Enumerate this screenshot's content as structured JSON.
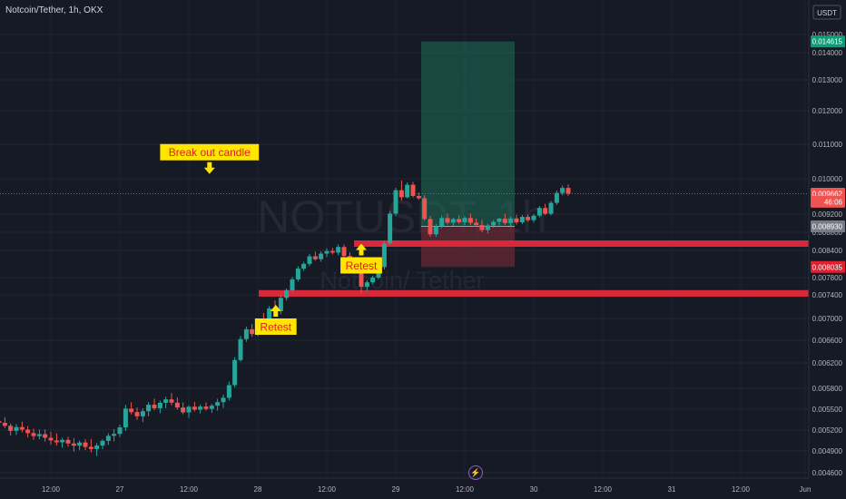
{
  "header": {
    "title": "Notcoin/Tether, 1h, OKX",
    "currency": "USDT"
  },
  "watermark": {
    "symbol": "NOTUSDT, 1h",
    "name": "Notcoin/ Tether"
  },
  "icons": {
    "bottom": "lightning-icon"
  },
  "colors": {
    "background": "#161a25",
    "up": "#26a69a",
    "down": "#ef5350",
    "zone": "#d8283a",
    "target_box": "#1f6f5a",
    "stop_box": "#6b2a34",
    "label_bg": "#ffe500",
    "label_text": "#e0201b",
    "arrow": "#ffe500"
  },
  "chart_data": {
    "type": "candlestick",
    "pair": "Notcoin/Tether",
    "interval": "1h",
    "exchange": "OKX",
    "y_ticks": [
      0.015,
      0.014,
      0.013,
      0.012,
      0.011,
      0.01,
      0.0092,
      0.0088,
      0.0084,
      0.0078,
      0.0074,
      0.007,
      0.0066,
      0.0062,
      0.0058,
      0.0055,
      0.0052,
      0.0049,
      0.0046
    ],
    "y_tick_labels": [
      "0.015000",
      "0.014000",
      "0.013000",
      "0.012000",
      "0.011000",
      "0.010000",
      "0.009200",
      "0.008800",
      "0.008400",
      "0.007800",
      "0.007400",
      "0.007000",
      "0.006600",
      "0.006200",
      "0.005800",
      "0.005500",
      "0.005200",
      "0.004900",
      "0.004600"
    ],
    "x_labels": [
      "12:00",
      "27",
      "12:00",
      "28",
      "12:00",
      "29",
      "12:00",
      "30",
      "12:00",
      "31",
      "12:00",
      "Jun"
    ],
    "price_tags": [
      {
        "label": "0.014615",
        "value": 0.014615,
        "bg": "#0f9d77",
        "fg": "#ffffff"
      },
      {
        "label": "0.009662",
        "value": 0.009662,
        "bg": "#ef5350",
        "fg": "#ffffff"
      },
      {
        "label": "46:06",
        "value": 0.00948,
        "bg": "#ef5350",
        "fg": "#ffffff"
      },
      {
        "label": "0.008930",
        "value": 0.00893,
        "bg": "#787b86",
        "fg": "#ffffff"
      },
      {
        "label": "0.008035",
        "value": 0.008035,
        "bg": "#e0202f",
        "fg": "#ffffff"
      }
    ],
    "current_price": 0.009662,
    "support_zones": [
      {
        "low": 0.00848,
        "high": 0.00862
      },
      {
        "low": 0.00737,
        "high": 0.00751
      }
    ],
    "position": {
      "entry": 0.00893,
      "target": 0.014615,
      "stop": 0.008035
    },
    "annotations": [
      {
        "text": "Break out candle",
        "time": 27.65,
        "price": 0.01077,
        "arrow": "down"
      },
      {
        "text": "Retest",
        "time": 28.75,
        "price": 0.00807,
        "arrow": "up"
      },
      {
        "text": "Retest",
        "time": 28.13,
        "price": 0.00685,
        "arrow": "up"
      }
    ],
    "candles": [
      {
        "t": 26.0,
        "o": 0.005403,
        "h": 0.005456,
        "l": 0.005316,
        "c": 0.005378
      },
      {
        "t": 26.042,
        "o": 0.005378,
        "h": 0.005425,
        "l": 0.005331,
        "c": 0.005363
      },
      {
        "t": 26.083,
        "o": 0.005363,
        "h": 0.005397,
        "l": 0.005277,
        "c": 0.005327
      },
      {
        "t": 26.125,
        "o": 0.005327,
        "h": 0.005393,
        "l": 0.005264,
        "c": 0.005304
      },
      {
        "t": 26.167,
        "o": 0.005304,
        "h": 0.005385,
        "l": 0.005229,
        "c": 0.005261
      },
      {
        "t": 26.208,
        "o": 0.005261,
        "h": 0.005295,
        "l": 0.005123,
        "c": 0.005189
      },
      {
        "t": 26.25,
        "o": 0.005189,
        "h": 0.005286,
        "l": 0.005128,
        "c": 0.005243
      },
      {
        "t": 26.292,
        "o": 0.005243,
        "h": 0.005321,
        "l": 0.005168,
        "c": 0.005206
      },
      {
        "t": 26.333,
        "o": 0.005206,
        "h": 0.005256,
        "l": 0.005093,
        "c": 0.005156
      },
      {
        "t": 26.375,
        "o": 0.005156,
        "h": 0.00522,
        "l": 0.005059,
        "c": 0.005113
      },
      {
        "t": 26.417,
        "o": 0.005113,
        "h": 0.005207,
        "l": 0.005065,
        "c": 0.005141
      },
      {
        "t": 26.458,
        "o": 0.005141,
        "h": 0.005209,
        "l": 0.005032,
        "c": 0.005089
      },
      {
        "t": 26.5,
        "o": 0.005089,
        "h": 0.005174,
        "l": 0.00499,
        "c": 0.005051
      },
      {
        "t": 26.542,
        "o": 0.005051,
        "h": 0.005152,
        "l": 0.004978,
        "c": 0.005024
      },
      {
        "t": 26.583,
        "o": 0.005024,
        "h": 0.005089,
        "l": 0.004946,
        "c": 0.005059
      },
      {
        "t": 26.625,
        "o": 0.005059,
        "h": 0.005104,
        "l": 0.004961,
        "c": 0.005007
      },
      {
        "t": 26.667,
        "o": 0.005007,
        "h": 0.005084,
        "l": 0.004891,
        "c": 0.004975
      },
      {
        "t": 26.708,
        "o": 0.004975,
        "h": 0.00505,
        "l": 0.004909,
        "c": 0.005021
      },
      {
        "t": 26.75,
        "o": 0.005021,
        "h": 0.005071,
        "l": 0.004912,
        "c": 0.004958
      },
      {
        "t": 26.792,
        "o": 0.004958,
        "h": 0.005071,
        "l": 0.004881,
        "c": 0.004927
      },
      {
        "t": 26.833,
        "o": 0.004927,
        "h": 0.005012,
        "l": 0.004829,
        "c": 0.004977
      },
      {
        "t": 26.875,
        "o": 0.004977,
        "h": 0.005067,
        "l": 0.004926,
        "c": 0.005045
      },
      {
        "t": 26.917,
        "o": 0.005045,
        "h": 0.005153,
        "l": 0.004987,
        "c": 0.005117
      },
      {
        "t": 26.958,
        "o": 0.005117,
        "h": 0.005213,
        "l": 0.005036,
        "c": 0.005145
      },
      {
        "t": 27.0,
        "o": 0.005145,
        "h": 0.005278,
        "l": 0.005101,
        "c": 0.005238
      },
      {
        "t": 27.042,
        "o": 0.005238,
        "h": 0.005562,
        "l": 0.005188,
        "c": 0.005508
      },
      {
        "t": 27.083,
        "o": 0.005508,
        "h": 0.005599,
        "l": 0.005425,
        "c": 0.005458
      },
      {
        "t": 27.125,
        "o": 0.005458,
        "h": 0.005524,
        "l": 0.005347,
        "c": 0.005398
      },
      {
        "t": 27.167,
        "o": 0.005398,
        "h": 0.005512,
        "l": 0.005314,
        "c": 0.005471
      },
      {
        "t": 27.208,
        "o": 0.005471,
        "h": 0.005603,
        "l": 0.005397,
        "c": 0.005564
      },
      {
        "t": 27.25,
        "o": 0.005564,
        "h": 0.005652,
        "l": 0.005484,
        "c": 0.005513
      },
      {
        "t": 27.292,
        "o": 0.005513,
        "h": 0.005624,
        "l": 0.005442,
        "c": 0.005592
      },
      {
        "t": 27.333,
        "o": 0.005592,
        "h": 0.005679,
        "l": 0.005513,
        "c": 0.005641
      },
      {
        "t": 27.375,
        "o": 0.005641,
        "h": 0.005733,
        "l": 0.005556,
        "c": 0.005594
      },
      {
        "t": 27.417,
        "o": 0.005594,
        "h": 0.005669,
        "l": 0.005492,
        "c": 0.005524
      },
      {
        "t": 27.458,
        "o": 0.005524,
        "h": 0.005595,
        "l": 0.005427,
        "c": 0.005454
      },
      {
        "t": 27.5,
        "o": 0.005454,
        "h": 0.005557,
        "l": 0.005374,
        "c": 0.005535
      },
      {
        "t": 27.542,
        "o": 0.005535,
        "h": 0.005605,
        "l": 0.005467,
        "c": 0.005493
      },
      {
        "t": 27.583,
        "o": 0.005493,
        "h": 0.005568,
        "l": 0.005438,
        "c": 0.005537
      },
      {
        "t": 27.625,
        "o": 0.005537,
        "h": 0.005598,
        "l": 0.005478,
        "c": 0.005504
      },
      {
        "t": 27.667,
        "o": 0.005504,
        "h": 0.005576,
        "l": 0.005447,
        "c": 0.00555
      },
      {
        "t": 27.708,
        "o": 0.00555,
        "h": 0.00565,
        "l": 0.00548,
        "c": 0.005601
      },
      {
        "t": 27.75,
        "o": 0.005601,
        "h": 0.005708,
        "l": 0.005518,
        "c": 0.005664
      },
      {
        "t": 27.792,
        "o": 0.005664,
        "h": 0.005903,
        "l": 0.005624,
        "c": 0.00585
      },
      {
        "t": 27.833,
        "o": 0.00585,
        "h": 0.006302,
        "l": 0.005813,
        "c": 0.006251
      },
      {
        "t": 27.875,
        "o": 0.006251,
        "h": 0.006677,
        "l": 0.00622,
        "c": 0.006621
      },
      {
        "t": 27.917,
        "o": 0.006621,
        "h": 0.006851,
        "l": 0.006572,
        "c": 0.006801
      },
      {
        "t": 27.958,
        "o": 0.006801,
        "h": 0.006898,
        "l": 0.006664,
        "c": 0.006714
      },
      {
        "t": 28.0,
        "o": 0.006714,
        "h": 0.007003,
        "l": 0.006675,
        "c": 0.006954
      },
      {
        "t": 28.042,
        "o": 0.006954,
        "h": 0.007094,
        "l": 0.006866,
        "c": 0.006925
      },
      {
        "t": 28.083,
        "o": 0.006925,
        "h": 0.007211,
        "l": 0.006879,
        "c": 0.007168
      },
      {
        "t": 28.125,
        "o": 0.007168,
        "h": 0.007306,
        "l": 0.007079,
        "c": 0.007123
      },
      {
        "t": 28.167,
        "o": 0.007123,
        "h": 0.007396,
        "l": 0.007072,
        "c": 0.007349
      },
      {
        "t": 28.208,
        "o": 0.007349,
        "h": 0.007548,
        "l": 0.007305,
        "c": 0.007507
      },
      {
        "t": 28.25,
        "o": 0.007507,
        "h": 0.007813,
        "l": 0.007465,
        "c": 0.00776
      },
      {
        "t": 28.292,
        "o": 0.00776,
        "h": 0.008051,
        "l": 0.007712,
        "c": 0.007998
      },
      {
        "t": 28.333,
        "o": 0.007998,
        "h": 0.008149,
        "l": 0.00795,
        "c": 0.008104
      },
      {
        "t": 28.375,
        "o": 0.008104,
        "h": 0.008326,
        "l": 0.008049,
        "c": 0.008271
      },
      {
        "t": 28.417,
        "o": 0.008271,
        "h": 0.008371,
        "l": 0.008174,
        "c": 0.008206
      },
      {
        "t": 28.458,
        "o": 0.008206,
        "h": 0.008378,
        "l": 0.008147,
        "c": 0.008329
      },
      {
        "t": 28.5,
        "o": 0.008329,
        "h": 0.008447,
        "l": 0.008255,
        "c": 0.008386
      },
      {
        "t": 28.542,
        "o": 0.008386,
        "h": 0.008455,
        "l": 0.008309,
        "c": 0.008351
      },
      {
        "t": 28.583,
        "o": 0.008351,
        "h": 0.008532,
        "l": 0.008294,
        "c": 0.008475
      },
      {
        "t": 28.625,
        "o": 0.008475,
        "h": 0.008528,
        "l": 0.008241,
        "c": 0.008277
      },
      {
        "t": 28.667,
        "o": 0.008277,
        "h": 0.008359,
        "l": 0.008019,
        "c": 0.008086
      },
      {
        "t": 28.708,
        "o": 0.008086,
        "h": 0.008201,
        "l": 0.007993,
        "c": 0.008029
      },
      {
        "t": 28.75,
        "o": 0.008029,
        "h": 0.008124,
        "l": 0.007446,
        "c": 0.007588
      },
      {
        "t": 28.792,
        "o": 0.007588,
        "h": 0.007742,
        "l": 0.007485,
        "c": 0.007692
      },
      {
        "t": 28.833,
        "o": 0.007692,
        "h": 0.007841,
        "l": 0.007647,
        "c": 0.007801
      },
      {
        "t": 28.875,
        "o": 0.007801,
        "h": 0.008084,
        "l": 0.00776,
        "c": 0.008034
      },
      {
        "t": 28.917,
        "o": 0.008034,
        "h": 0.008612,
        "l": 0.00798,
        "c": 0.008553
      },
      {
        "t": 28.958,
        "o": 0.008553,
        "h": 0.009271,
        "l": 0.008513,
        "c": 0.009211
      },
      {
        "t": 29.0,
        "o": 0.009211,
        "h": 0.009795,
        "l": 0.009164,
        "c": 0.00974
      },
      {
        "t": 29.042,
        "o": 0.00974,
        "h": 0.009959,
        "l": 0.009509,
        "c": 0.009581
      },
      {
        "t": 29.083,
        "o": 0.009581,
        "h": 0.009917,
        "l": 0.009557,
        "c": 0.009864
      },
      {
        "t": 29.125,
        "o": 0.009864,
        "h": 0.009928,
        "l": 0.009575,
        "c": 0.009612
      },
      {
        "t": 29.167,
        "o": 0.009612,
        "h": 0.009686,
        "l": 0.009521,
        "c": 0.009558
      },
      {
        "t": 29.208,
        "o": 0.009558,
        "h": 0.009623,
        "l": 0.009055,
        "c": 0.009093
      },
      {
        "t": 29.25,
        "o": 0.009093,
        "h": 0.00916,
        "l": 0.008704,
        "c": 0.008755
      },
      {
        "t": 29.292,
        "o": 0.008755,
        "h": 0.008985,
        "l": 0.008699,
        "c": 0.00893
      },
      {
        "t": 29.333,
        "o": 0.00893,
        "h": 0.009166,
        "l": 0.008895,
        "c": 0.009113
      },
      {
        "t": 29.375,
        "o": 0.009113,
        "h": 0.009211,
        "l": 0.00897,
        "c": 0.009012
      },
      {
        "t": 29.417,
        "o": 0.009012,
        "h": 0.009126,
        "l": 0.008935,
        "c": 0.00909
      },
      {
        "t": 29.458,
        "o": 0.00909,
        "h": 0.009173,
        "l": 0.008985,
        "c": 0.009022
      },
      {
        "t": 29.5,
        "o": 0.009022,
        "h": 0.009156,
        "l": 0.008952,
        "c": 0.009114
      },
      {
        "t": 29.542,
        "o": 0.009114,
        "h": 0.009211,
        "l": 0.008959,
        "c": 0.009009
      },
      {
        "t": 29.583,
        "o": 0.009009,
        "h": 0.009102,
        "l": 0.008927,
        "c": 0.008958
      },
      {
        "t": 29.625,
        "o": 0.008958,
        "h": 0.009073,
        "l": 0.008801,
        "c": 0.008849
      },
      {
        "t": 29.667,
        "o": 0.008849,
        "h": 0.008988,
        "l": 0.008773,
        "c": 0.00895
      },
      {
        "t": 29.708,
        "o": 0.00895,
        "h": 0.009068,
        "l": 0.008898,
        "c": 0.009028
      },
      {
        "t": 29.75,
        "o": 0.009028,
        "h": 0.009121,
        "l": 0.008948,
        "c": 0.009099
      },
      {
        "t": 29.792,
        "o": 0.009099,
        "h": 0.009211,
        "l": 0.008962,
        "c": 0.009003
      },
      {
        "t": 29.833,
        "o": 0.009003,
        "h": 0.009145,
        "l": 0.008942,
        "c": 0.009105
      },
      {
        "t": 29.875,
        "o": 0.009105,
        "h": 0.009186,
        "l": 0.00897,
        "c": 0.009019
      },
      {
        "t": 29.917,
        "o": 0.009019,
        "h": 0.009182,
        "l": 0.008978,
        "c": 0.009139
      },
      {
        "t": 29.958,
        "o": 0.009139,
        "h": 0.009193,
        "l": 0.009033,
        "c": 0.009067
      },
      {
        "t": 30.0,
        "o": 0.009067,
        "h": 0.009206,
        "l": 0.009014,
        "c": 0.009167
      },
      {
        "t": 30.042,
        "o": 0.009167,
        "h": 0.009382,
        "l": 0.009127,
        "c": 0.009339
      },
      {
        "t": 30.083,
        "o": 0.009339,
        "h": 0.009435,
        "l": 0.009177,
        "c": 0.009208
      },
      {
        "t": 30.125,
        "o": 0.009208,
        "h": 0.009501,
        "l": 0.009171,
        "c": 0.009455
      },
      {
        "t": 30.167,
        "o": 0.009455,
        "h": 0.009733,
        "l": 0.009407,
        "c": 0.009679
      },
      {
        "t": 30.208,
        "o": 0.009679,
        "h": 0.009844,
        "l": 0.009626,
        "c": 0.009792
      },
      {
        "t": 30.25,
        "o": 0.009792,
        "h": 0.009872,
        "l": 0.009616,
        "c": 0.009662
      }
    ]
  }
}
